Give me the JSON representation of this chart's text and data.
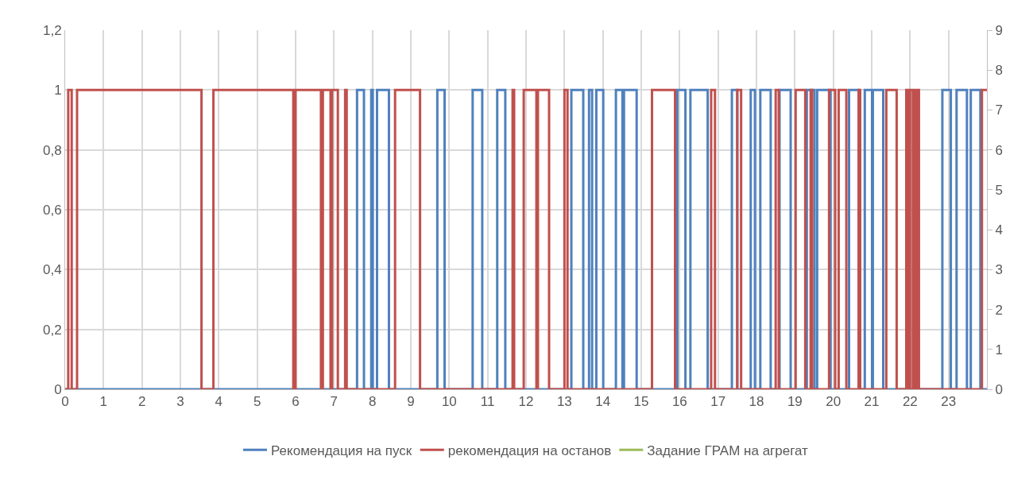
{
  "chart_data": {
    "type": "step",
    "series": [
      {
        "name": "Рекомендация на пуск",
        "color": "#4f81bd",
        "x": [
          0,
          7.6,
          7.78,
          7.97,
          8.01,
          8.12,
          8.43,
          9.69,
          9.88,
          10.61,
          10.86,
          11.25,
          11.46,
          13.18,
          13.49,
          13.64,
          13.72,
          13.83,
          14.01,
          14.34,
          14.51,
          14.55,
          14.88,
          15.94,
          16.15,
          16.28,
          16.73,
          17.36,
          17.5,
          17.85,
          17.96,
          18.1,
          18.37,
          18.6,
          18.89,
          19.31,
          19.51,
          19.58,
          19.93,
          20.41,
          20.66,
          20.82,
          21.01,
          21.03,
          21.3,
          22.84,
          23.06,
          23.21,
          23.48,
          23.58,
          23.83,
          24
        ],
        "values": [
          0,
          1,
          0,
          1,
          0,
          1,
          0,
          1,
          0,
          1,
          0,
          1,
          0,
          1,
          0,
          1,
          0,
          1,
          0,
          1,
          0,
          1,
          0,
          1,
          0,
          1,
          0,
          1,
          0,
          1,
          0,
          1,
          0,
          1,
          0,
          1,
          0,
          1,
          0,
          1,
          0,
          1,
          0,
          1,
          0,
          1,
          0,
          1,
          0,
          1,
          0,
          0
        ]
      },
      {
        "name": "рекомендация на останов",
        "color": "#c0504d",
        "x": [
          0,
          0.08,
          0.17,
          0.31,
          3.55,
          3.86,
          5.94,
          6.0,
          6.66,
          6.71,
          6.91,
          6.95,
          7.1,
          7.29,
          7.33,
          8.59,
          9.24,
          11.65,
          11.69,
          11.94,
          12.27,
          12.31,
          12.6,
          13.0,
          13.08,
          15.28,
          15.88,
          16.82,
          16.92,
          17.5,
          17.6,
          18.5,
          18.58,
          19.02,
          19.27,
          19.41,
          19.45,
          19.89,
          20.05,
          20.14,
          20.34,
          20.66,
          20.7,
          21.38,
          21.65,
          21.9,
          21.96,
          22.0,
          22.07,
          22.11,
          22.17,
          22.19,
          22.23,
          23.87,
          24
        ],
        "values": [
          0,
          1,
          0,
          1,
          0,
          1,
          0,
          1,
          0,
          1,
          0,
          1,
          0,
          1,
          0,
          1,
          0,
          1,
          0,
          1,
          0,
          1,
          0,
          1,
          0,
          1,
          0,
          1,
          0,
          1,
          0,
          1,
          0,
          1,
          0,
          1,
          0,
          1,
          0,
          1,
          0,
          1,
          0,
          1,
          0,
          1,
          0,
          1,
          0,
          1,
          0,
          1,
          0,
          1,
          1
        ]
      },
      {
        "name": "Задание ГРАМ на агрегат",
        "color": "#9bbb59",
        "axis": "y2"
      }
    ],
    "xlim": [
      0,
      24
    ],
    "xticks": [
      0,
      1,
      2,
      3,
      4,
      5,
      6,
      7,
      8,
      9,
      10,
      11,
      12,
      13,
      14,
      15,
      16,
      17,
      18,
      19,
      20,
      21,
      22,
      23
    ],
    "ylim": [
      0,
      1.2
    ],
    "yticks": [
      0,
      {
        "value": 0.2,
        "label": "0,2"
      },
      {
        "value": 0.4,
        "label": "0,4"
      },
      {
        "value": 0.6,
        "label": "0,6"
      },
      {
        "value": 0.8,
        "label": "0,8"
      },
      1,
      {
        "value": 1.2,
        "label": "1,2"
      }
    ],
    "y2lim": [
      0,
      9
    ],
    "y2ticks": [
      0,
      1,
      2,
      3,
      4,
      5,
      6,
      7,
      8,
      9
    ],
    "grid": true,
    "legend": "bottom",
    "marker": "none",
    "line_style": "solid"
  }
}
